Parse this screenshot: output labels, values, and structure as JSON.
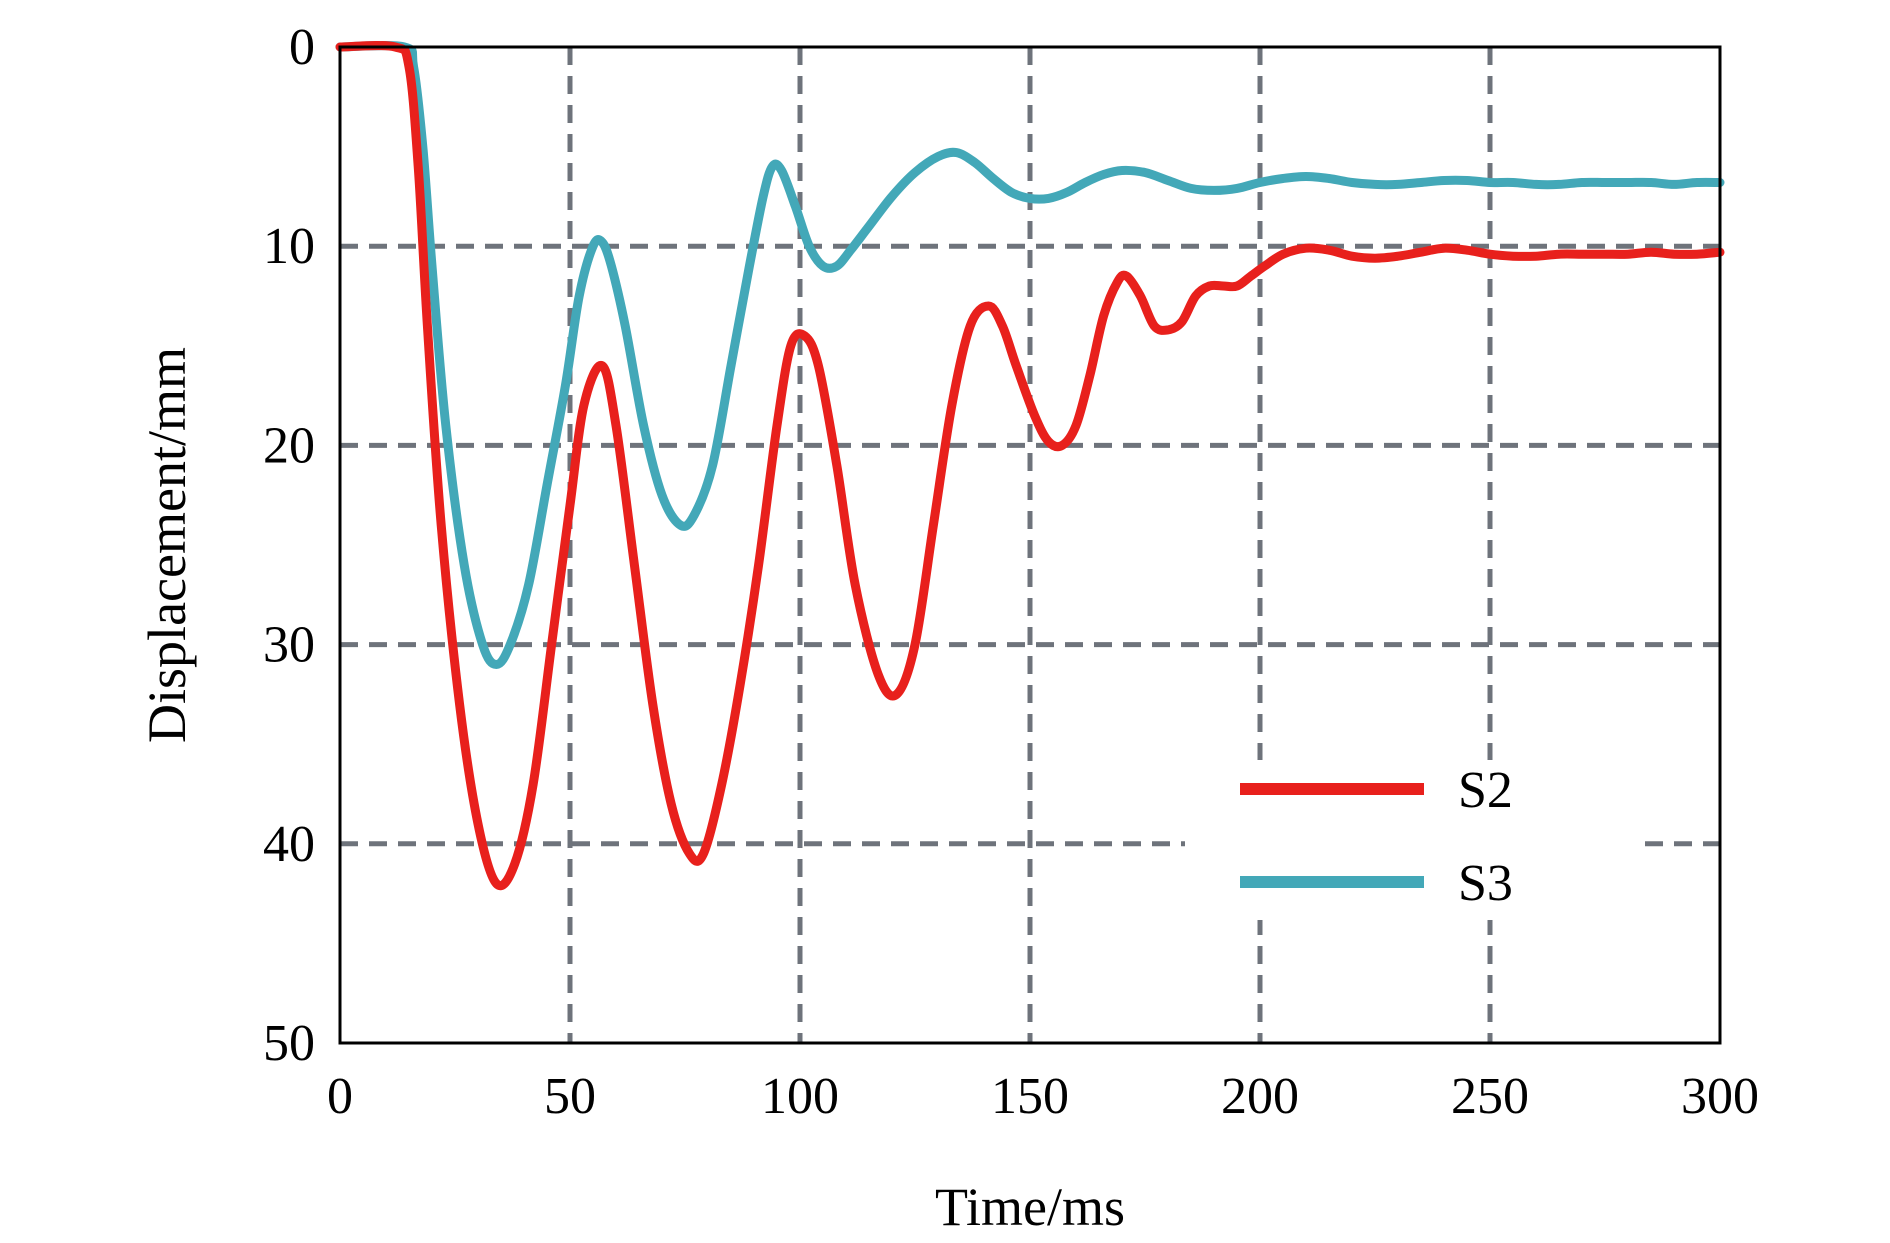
{
  "chart_data": {
    "type": "line",
    "title": "",
    "xlabel": "Time/ms",
    "ylabel": "Displacement/mm",
    "xlim": [
      0,
      300
    ],
    "ylim": [
      0,
      50
    ],
    "y_inverted": true,
    "grid": true,
    "legend_position": "bottom-right",
    "x_ticks": [
      "0",
      "50",
      "100",
      "150",
      "200",
      "250",
      "300"
    ],
    "y_ticks": [
      "0",
      "10",
      "20",
      "30",
      "40",
      "50"
    ],
    "series": [
      {
        "name": "S2",
        "color": "#e8201c",
        "points": [
          [
            0,
            0
          ],
          [
            12,
            0
          ],
          [
            15,
            1
          ],
          [
            17,
            6
          ],
          [
            19,
            14
          ],
          [
            22,
            24
          ],
          [
            26,
            33
          ],
          [
            30,
            39
          ],
          [
            34,
            42
          ],
          [
            38,
            41
          ],
          [
            42,
            37
          ],
          [
            46,
            30
          ],
          [
            50,
            23
          ],
          [
            53,
            18
          ],
          [
            57,
            16
          ],
          [
            60,
            19
          ],
          [
            64,
            26
          ],
          [
            68,
            33
          ],
          [
            72,
            38
          ],
          [
            76,
            40.5
          ],
          [
            79,
            40.5
          ],
          [
            83,
            37
          ],
          [
            87,
            32
          ],
          [
            91,
            26
          ],
          [
            95,
            19
          ],
          [
            98,
            15
          ],
          [
            101,
            14.5
          ],
          [
            104,
            16
          ],
          [
            108,
            21
          ],
          [
            112,
            27
          ],
          [
            117,
            31.5
          ],
          [
            121,
            32.5
          ],
          [
            125,
            30
          ],
          [
            129,
            24
          ],
          [
            133,
            18
          ],
          [
            137,
            14
          ],
          [
            141,
            13
          ],
          [
            144,
            14
          ],
          [
            147,
            16
          ],
          [
            151,
            18.5
          ],
          [
            154,
            19.8
          ],
          [
            157,
            20
          ],
          [
            160,
            19
          ],
          [
            163,
            16.5
          ],
          [
            166,
            13.5
          ],
          [
            169,
            11.8
          ],
          [
            171,
            11.5
          ],
          [
            174,
            12.5
          ],
          [
            177,
            14
          ],
          [
            180,
            14.2
          ],
          [
            183,
            13.8
          ],
          [
            186,
            12.5
          ],
          [
            189,
            12
          ],
          [
            192,
            12
          ],
          [
            195,
            12
          ],
          [
            198,
            11.5
          ],
          [
            201,
            11
          ],
          [
            205,
            10.4
          ],
          [
            210,
            10.1
          ],
          [
            215,
            10.2
          ],
          [
            220,
            10.5
          ],
          [
            225,
            10.6
          ],
          [
            230,
            10.5
          ],
          [
            235,
            10.3
          ],
          [
            240,
            10.1
          ],
          [
            245,
            10.2
          ],
          [
            250,
            10.4
          ],
          [
            255,
            10.5
          ],
          [
            260,
            10.5
          ],
          [
            265,
            10.4
          ],
          [
            270,
            10.4
          ],
          [
            275,
            10.4
          ],
          [
            280,
            10.4
          ],
          [
            285,
            10.3
          ],
          [
            290,
            10.4
          ],
          [
            295,
            10.4
          ],
          [
            300,
            10.3
          ]
        ]
      },
      {
        "name": "S3",
        "color": "#43a8b8",
        "points": [
          [
            0,
            0
          ],
          [
            14,
            0
          ],
          [
            16,
            1
          ],
          [
            18,
            5
          ],
          [
            20,
            11
          ],
          [
            23,
            19
          ],
          [
            27,
            26
          ],
          [
            31,
            30
          ],
          [
            34,
            31
          ],
          [
            37,
            30
          ],
          [
            41,
            27
          ],
          [
            45,
            22
          ],
          [
            49,
            17
          ],
          [
            52,
            12.5
          ],
          [
            55,
            10
          ],
          [
            57,
            9.8
          ],
          [
            59,
            11
          ],
          [
            62,
            14
          ],
          [
            66,
            19
          ],
          [
            70,
            22.5
          ],
          [
            74,
            24
          ],
          [
            77,
            23.5
          ],
          [
            81,
            21
          ],
          [
            85,
            16
          ],
          [
            89,
            11
          ],
          [
            92,
            7.5
          ],
          [
            94,
            6
          ],
          [
            96,
            6.2
          ],
          [
            99,
            8
          ],
          [
            102,
            10
          ],
          [
            105,
            11
          ],
          [
            108,
            11
          ],
          [
            111,
            10.2
          ],
          [
            115,
            9
          ],
          [
            120,
            7.5
          ],
          [
            125,
            6.3
          ],
          [
            130,
            5.5
          ],
          [
            134,
            5.3
          ],
          [
            138,
            5.8
          ],
          [
            142,
            6.6
          ],
          [
            146,
            7.3
          ],
          [
            150,
            7.6
          ],
          [
            154,
            7.6
          ],
          [
            158,
            7.3
          ],
          [
            162,
            6.8
          ],
          [
            166,
            6.4
          ],
          [
            170,
            6.2
          ],
          [
            175,
            6.3
          ],
          [
            180,
            6.7
          ],
          [
            185,
            7.1
          ],
          [
            190,
            7.2
          ],
          [
            195,
            7.1
          ],
          [
            200,
            6.8
          ],
          [
            205,
            6.6
          ],
          [
            210,
            6.5
          ],
          [
            215,
            6.6
          ],
          [
            220,
            6.8
          ],
          [
            225,
            6.9
          ],
          [
            230,
            6.9
          ],
          [
            235,
            6.8
          ],
          [
            240,
            6.7
          ],
          [
            245,
            6.7
          ],
          [
            250,
            6.8
          ],
          [
            255,
            6.8
          ],
          [
            260,
            6.9
          ],
          [
            265,
            6.9
          ],
          [
            270,
            6.8
          ],
          [
            275,
            6.8
          ],
          [
            280,
            6.8
          ],
          [
            285,
            6.8
          ],
          [
            290,
            6.9
          ],
          [
            295,
            6.8
          ],
          [
            300,
            6.8
          ]
        ]
      }
    ]
  }
}
